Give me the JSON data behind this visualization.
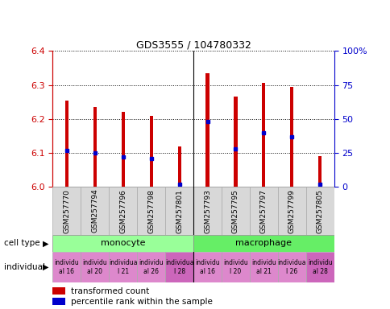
{
  "title": "GDS3555 / 104780332",
  "samples": [
    "GSM257770",
    "GSM257794",
    "GSM257796",
    "GSM257798",
    "GSM257801",
    "GSM257793",
    "GSM257795",
    "GSM257797",
    "GSM257799",
    "GSM257805"
  ],
  "transformed_count": [
    6.255,
    6.235,
    6.22,
    6.21,
    6.12,
    6.335,
    6.265,
    6.305,
    6.295,
    6.09
  ],
  "percentile_rank": [
    27,
    25,
    22,
    21,
    2,
    48,
    28,
    40,
    37,
    2
  ],
  "ylim": [
    6.0,
    6.4
  ],
  "yticks": [
    6.0,
    6.1,
    6.2,
    6.3,
    6.4
  ],
  "y2lim": [
    0,
    100
  ],
  "y2ticks": [
    0,
    25,
    50,
    75,
    100
  ],
  "y2ticklabels": [
    "0",
    "25",
    "50",
    "75",
    "100%"
  ],
  "bar_color": "#cc0000",
  "dot_color": "#0000cc",
  "bar_bottom": 6.0,
  "bar_width": 0.12,
  "individual_labels": [
    "individu\nal 16",
    "individu\nal 20",
    "individua\nl 21",
    "individu\nal 26",
    "individua\nl 28",
    "individu\nal 16",
    "individu\nl 20",
    "individu\nal 21",
    "individua\nl 26",
    "individu\nal 28"
  ],
  "grid_color": "#000000",
  "tick_fontsize": 8,
  "title_fontsize": 9,
  "monocyte_color": "#99ff99",
  "macrophage_color": "#66ee66",
  "ind_color_pink": "#dd88cc",
  "ind_color_dark": "#cc66bb",
  "sample_bg_color": "#d8d8d8"
}
